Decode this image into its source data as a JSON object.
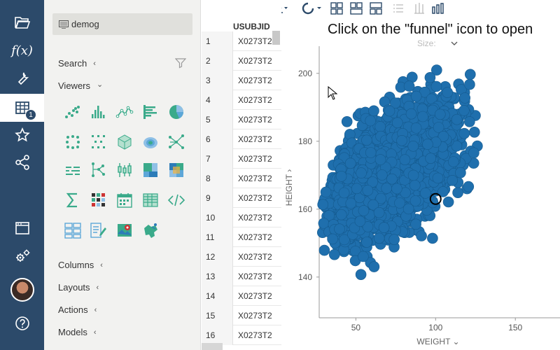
{
  "project": {
    "name": "demog"
  },
  "panel": {
    "search_label": "Search",
    "viewers_label": "Viewers",
    "columns_label": "Columns",
    "layouts_label": "Layouts",
    "actions_label": "Actions",
    "models_label": "Models",
    "chev_left": "‹",
    "chev_down": "⌄"
  },
  "rail": {
    "badge": "1",
    "fx_label": "f(x)"
  },
  "toolbar": {
    "title": "demog"
  },
  "table": {
    "column": "USUBJID",
    "rows": [
      {
        "n": "1",
        "v": "X0273T2"
      },
      {
        "n": "2",
        "v": "X0273T2"
      },
      {
        "n": "3",
        "v": "X0273T2"
      },
      {
        "n": "4",
        "v": "X0273T2"
      },
      {
        "n": "5",
        "v": "X0273T2"
      },
      {
        "n": "6",
        "v": "X0273T2"
      },
      {
        "n": "7",
        "v": "X0273T2"
      },
      {
        "n": "8",
        "v": "X0273T2"
      },
      {
        "n": "9",
        "v": "X0273T2"
      },
      {
        "n": "10",
        "v": "X0273T2"
      },
      {
        "n": "11",
        "v": "X0273T2"
      },
      {
        "n": "12",
        "v": "X0273T2"
      },
      {
        "n": "13",
        "v": "X0273T2"
      },
      {
        "n": "14",
        "v": "X0273T2"
      },
      {
        "n": "15",
        "v": "X0273T2"
      },
      {
        "n": "16",
        "v": "X0273T2"
      }
    ]
  },
  "instruction": "Click on the \"funnel\" icon to open",
  "plot": {
    "size_label": "Size:",
    "xlabel": "WEIGHT ⌄",
    "ylabel": "HEIGHT ›",
    "xticks": [
      50,
      100,
      150
    ],
    "yticks": [
      140,
      160,
      180,
      200
    ],
    "xlim": [
      27,
      178
    ],
    "ylim": [
      128,
      208
    ],
    "point_color": "#1f6fad",
    "selected_point": {
      "x": 100,
      "y": 163
    }
  }
}
